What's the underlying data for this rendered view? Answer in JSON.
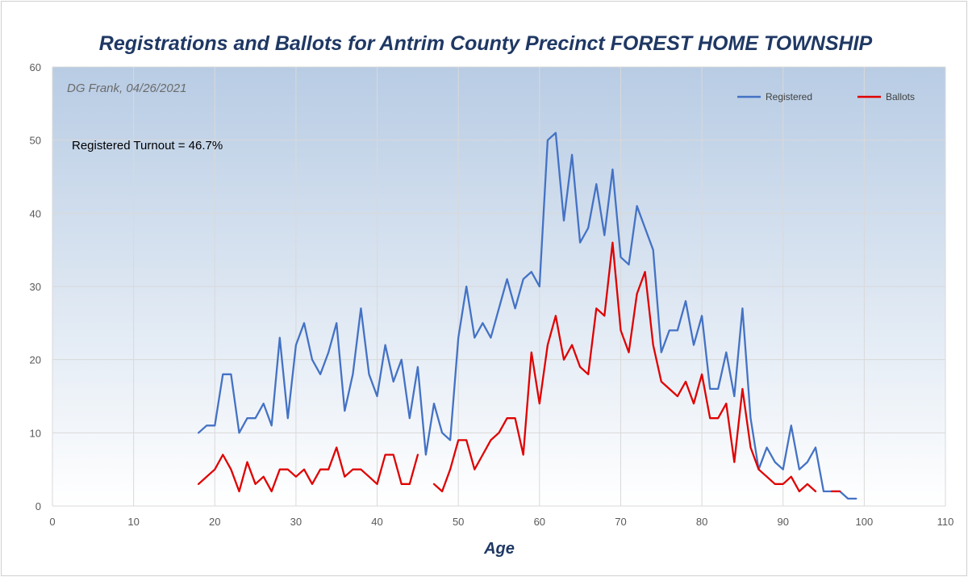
{
  "chart_data": {
    "type": "line",
    "title": "Registrations and Ballots for Antrim County Precinct FOREST HOME TOWNSHIP",
    "xlabel": "Age",
    "ylabel": "",
    "xlim": [
      0,
      110
    ],
    "ylim": [
      0,
      60
    ],
    "xticks": [
      0,
      10,
      20,
      30,
      40,
      50,
      60,
      70,
      80,
      90,
      100,
      110
    ],
    "yticks": [
      0,
      10,
      20,
      30,
      40,
      50,
      60
    ],
    "grid": true,
    "legend_placement": "top-right",
    "annotations": {
      "credit": "DG Frank, 04/26/2021",
      "turnout": "Registered Turnout = 46.7%"
    },
    "series": [
      {
        "name": "Registered",
        "color": "#4472c4",
        "x": [
          18,
          19,
          20,
          21,
          22,
          23,
          24,
          25,
          26,
          27,
          28,
          29,
          30,
          31,
          32,
          33,
          34,
          35,
          36,
          37,
          38,
          39,
          40,
          41,
          42,
          43,
          44,
          45,
          46,
          47,
          48,
          49,
          50,
          51,
          52,
          53,
          54,
          55,
          56,
          57,
          58,
          59,
          60,
          61,
          62,
          63,
          64,
          65,
          66,
          67,
          68,
          69,
          70,
          71,
          72,
          73,
          74,
          75,
          76,
          77,
          78,
          79,
          80,
          81,
          82,
          83,
          84,
          85,
          86,
          87,
          88,
          89,
          90,
          91,
          92,
          93,
          94,
          95,
          96,
          97,
          98,
          99
        ],
        "y": [
          10,
          11,
          11,
          18,
          18,
          10,
          12,
          12,
          14,
          11,
          23,
          12,
          22,
          25,
          20,
          18,
          21,
          25,
          13,
          18,
          27,
          18,
          15,
          22,
          17,
          20,
          12,
          19,
          7,
          14,
          10,
          9,
          23,
          30,
          23,
          25,
          23,
          27,
          31,
          27,
          31,
          32,
          30,
          50,
          51,
          39,
          48,
          36,
          38,
          44,
          37,
          46,
          34,
          33,
          41,
          38,
          35,
          21,
          24,
          24,
          28,
          22,
          26,
          16,
          16,
          21,
          15,
          27,
          12,
          5,
          8,
          6,
          5,
          11,
          5,
          6,
          8,
          2,
          2,
          2,
          1,
          1
        ]
      },
      {
        "name": "Ballots",
        "color": "#e00000",
        "segments": [
          {
            "x": [
              18,
              19,
              20,
              21,
              22,
              23,
              24,
              25,
              26,
              27,
              28,
              29,
              30,
              31,
              32,
              33,
              34,
              35,
              36,
              37,
              38,
              39,
              40,
              41,
              42,
              43,
              44,
              45
            ],
            "y": [
              3,
              4,
              5,
              7,
              5,
              2,
              6,
              3,
              4,
              2,
              5,
              5,
              4,
              5,
              3,
              5,
              5,
              8,
              4,
              5,
              5,
              4,
              3,
              7,
              7,
              3,
              3,
              7
            ]
          },
          {
            "x": [
              47,
              48,
              49,
              50,
              51,
              52,
              53,
              54,
              55,
              56,
              57,
              58,
              59,
              60,
              61,
              62,
              63,
              64,
              65,
              66,
              67,
              68,
              69,
              70,
              71,
              72,
              73,
              74,
              75,
              76,
              77,
              78,
              79,
              80,
              81,
              82,
              83,
              84,
              85,
              86,
              87,
              88,
              89,
              90,
              91,
              92,
              93,
              94
            ],
            "y": [
              3,
              2,
              5,
              9,
              9,
              5,
              7,
              9,
              10,
              12,
              12,
              7,
              21,
              14,
              22,
              26,
              20,
              22,
              19,
              18,
              27,
              26,
              36,
              24,
              21,
              29,
              32,
              22,
              17,
              16,
              15,
              17,
              14,
              18,
              12,
              12,
              14,
              6,
              16,
              8,
              5,
              4,
              3,
              3,
              4,
              2,
              3,
              2
            ]
          },
          {
            "x": [
              96,
              97
            ],
            "y": [
              2,
              2
            ]
          }
        ]
      }
    ]
  }
}
